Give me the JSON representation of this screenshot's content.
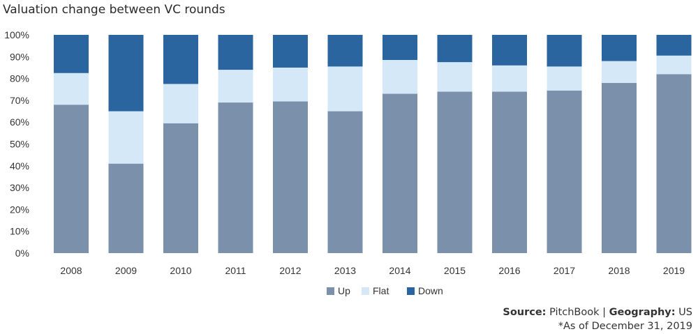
{
  "chart_data": {
    "type": "bar",
    "stacked": true,
    "title": "Valuation change between VC rounds",
    "categories": [
      "2008",
      "2009",
      "2010",
      "2011",
      "2012",
      "2013",
      "2014",
      "2015",
      "2016",
      "2017",
      "2018",
      "2019"
    ],
    "series": [
      {
        "name": "Up",
        "color": "#7b90ab",
        "values": [
          68,
          41,
          59.5,
          69,
          69.5,
          65,
          73,
          74,
          74,
          74.5,
          78,
          82
        ]
      },
      {
        "name": "Flat",
        "color": "#d4e8f8",
        "values": [
          14.5,
          24,
          18,
          15,
          15.5,
          20.5,
          15.5,
          13.5,
          12,
          11,
          10,
          8.5
        ]
      },
      {
        "name": "Down",
        "color": "#2a65a0",
        "values": [
          17.5,
          35,
          22.5,
          16,
          15,
          14.5,
          11.5,
          12.5,
          14,
          14.5,
          12,
          9.5
        ]
      }
    ],
    "y_ticks": [
      "0%",
      "10%",
      "20%",
      "30%",
      "40%",
      "50%",
      "60%",
      "70%",
      "80%",
      "90%",
      "100%"
    ],
    "ylim": [
      0,
      100
    ],
    "grid": false,
    "legend_position": "bottom"
  },
  "source": {
    "label": "Source:",
    "value": "PitchBook",
    "sep": "|",
    "geo_label": "Geography:",
    "geo_value": "US",
    "note": "*As of December 31, 2019"
  }
}
